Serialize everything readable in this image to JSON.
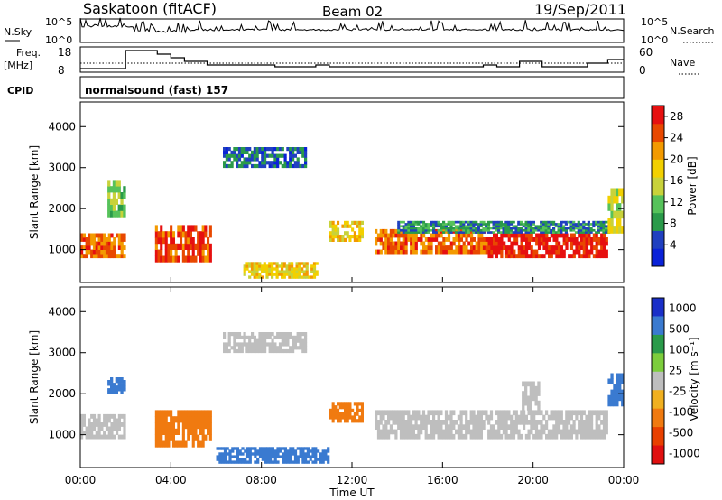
{
  "header": {
    "station": "Saskatoon (fitACF)",
    "beam": "Beam 02",
    "date": "19/Sep/2011"
  },
  "panels": {
    "nsky": {
      "label": "N.Sky",
      "ticks": [
        "10^5",
        "10^0"
      ],
      "right_label": "N.Search",
      "right_ticks": [
        "10^5",
        "10^0"
      ]
    },
    "freq": {
      "label_line1": "Freq.",
      "label_line2": "[MHz]",
      "ticks": [
        "18",
        "8"
      ],
      "right_label": "Nave",
      "right_ticks": [
        "60",
        "0"
      ]
    },
    "cpid": {
      "label": "CPID",
      "mode": "normalsound (fast) 157"
    }
  },
  "chart_data": [
    {
      "type": "heatmap",
      "title": "",
      "ylabel": "Slant Range [km]",
      "xlabel": "",
      "ylim": [
        200,
        4600
      ],
      "xlim": [
        0,
        24
      ],
      "yticks": [
        "1000",
        "2000",
        "3000",
        "4000"
      ],
      "colorbar": {
        "label": "Power [dB]",
        "ticks": [
          "4",
          "8",
          "12",
          "16",
          "20",
          "24",
          "28"
        ],
        "range": [
          0,
          30
        ]
      },
      "series": [
        {
          "name": "backscatter_bands",
          "description_free": true,
          "values": [
            {
              "t0": 0.0,
              "t1": 2.0,
              "r0": 800,
              "r1": 1400,
              "p": 24
            },
            {
              "t0": 1.2,
              "t1": 2.0,
              "r0": 1800,
              "r1": 2700,
              "p": 12
            },
            {
              "t0": 3.3,
              "t1": 5.8,
              "r0": 700,
              "r1": 1600,
              "p": 26
            },
            {
              "t0": 6.3,
              "t1": 10.0,
              "r0": 3000,
              "r1": 3500,
              "p": 6
            },
            {
              "t0": 7.2,
              "t1": 10.5,
              "r0": 300,
              "r1": 700,
              "p": 18
            },
            {
              "t0": 11.0,
              "t1": 12.5,
              "r0": 1200,
              "r1": 1700,
              "p": 18
            },
            {
              "t0": 13.0,
              "t1": 18.0,
              "r0": 900,
              "r1": 1500,
              "p": 24
            },
            {
              "t0": 18.0,
              "t1": 23.3,
              "r0": 800,
              "r1": 1400,
              "p": 28
            },
            {
              "t0": 14.0,
              "t1": 23.5,
              "r0": 1400,
              "r1": 1700,
              "p": 8
            },
            {
              "t0": 23.3,
              "t1": 24.0,
              "r0": 1400,
              "r1": 2500,
              "p": 16
            }
          ]
        }
      ]
    },
    {
      "type": "heatmap",
      "title": "",
      "ylabel": "Slant Range [km]",
      "xlabel": "Time UT",
      "ylim": [
        200,
        4600
      ],
      "xlim": [
        0,
        24
      ],
      "yticks": [
        "1000",
        "2000",
        "3000",
        "4000"
      ],
      "xticks": [
        "00:00",
        "04:00",
        "08:00",
        "12:00",
        "16:00",
        "20:00",
        "00:00"
      ],
      "colorbar": {
        "label": "Velocity [m s⁻¹]",
        "ticks": [
          "1000",
          "500",
          "100",
          "25",
          "-25",
          "-100",
          "-500",
          "-1000"
        ]
      },
      "series": [
        {
          "name": "velocity_bands",
          "values": [
            {
              "t0": 0.0,
              "t1": 2.0,
              "r0": 900,
              "r1": 1500,
              "v": 0
            },
            {
              "t0": 1.2,
              "t1": 2.0,
              "r0": 2000,
              "r1": 2400,
              "v": 150
            },
            {
              "t0": 3.3,
              "t1": 5.8,
              "r0": 700,
              "r1": 1600,
              "v": -300
            },
            {
              "t0": 6.3,
              "t1": 10.0,
              "r0": 3000,
              "r1": 3500,
              "v": 0
            },
            {
              "t0": 6.0,
              "t1": 11.0,
              "r0": 300,
              "r1": 700,
              "v": 150
            },
            {
              "t0": 11.0,
              "t1": 12.5,
              "r0": 1300,
              "r1": 1800,
              "v": -300
            },
            {
              "t0": 13.0,
              "t1": 23.3,
              "r0": 900,
              "r1": 1600,
              "v": 0
            },
            {
              "t0": 19.5,
              "t1": 20.3,
              "r0": 1600,
              "r1": 2300,
              "v": 0
            },
            {
              "t0": 23.3,
              "t1": 24.0,
              "r0": 1700,
              "r1": 2500,
              "v": 150
            }
          ]
        }
      ]
    }
  ],
  "colors": {
    "power": [
      "#0a22d8",
      "#2040c0",
      "#2a9a4a",
      "#56c25a",
      "#c8d23a",
      "#f2d000",
      "#f39a00",
      "#e84800",
      "#e61010"
    ],
    "velocity_pos": [
      "#1a2fc8",
      "#3a7ad0",
      "#2a9a4a",
      "#7ccd3c"
    ],
    "velocity_zero": "#bebebe",
    "velocity_neg": [
      "#f0b020",
      "#f07a10",
      "#e84000",
      "#e01010"
    ]
  }
}
